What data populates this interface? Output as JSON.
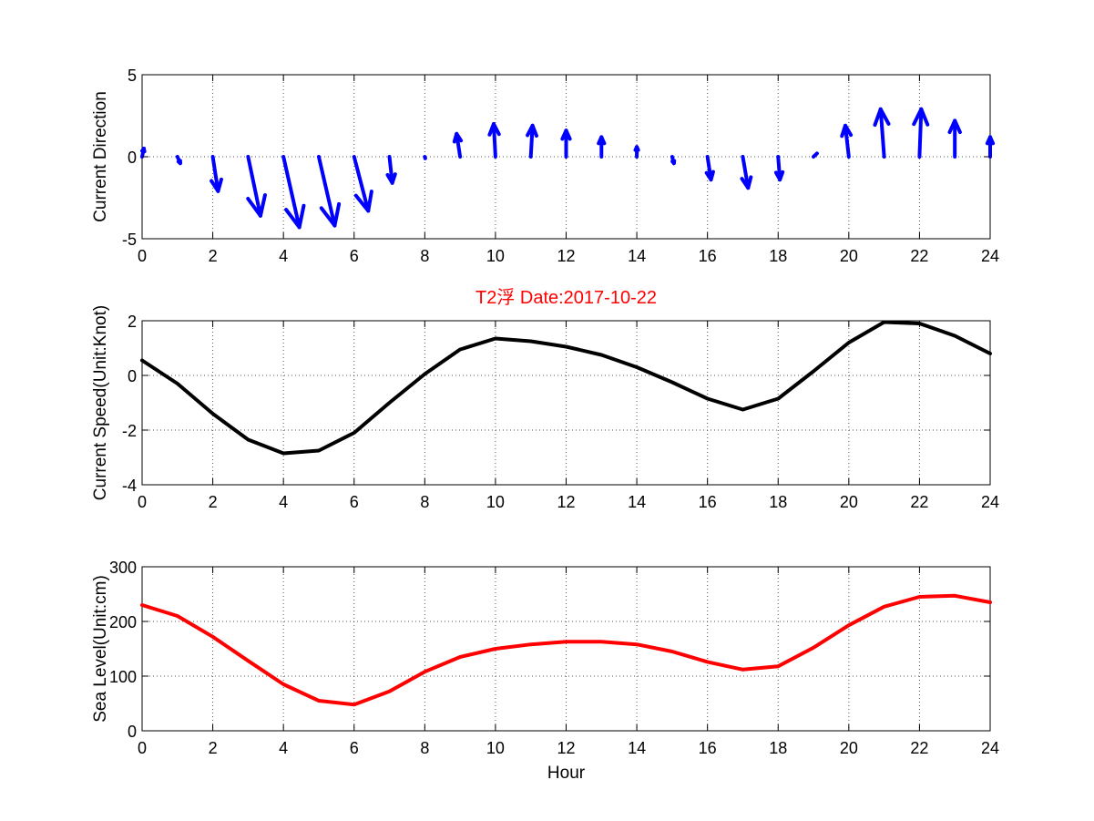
{
  "chart_data": [
    {
      "type": "quiver",
      "ylabel": "Current Direction",
      "xlim": [
        0,
        24
      ],
      "ylim": [
        -5,
        5
      ],
      "xticks": [
        0,
        2,
        4,
        6,
        8,
        10,
        12,
        14,
        16,
        18,
        20,
        22,
        24
      ],
      "yticks": [
        -5,
        0,
        5
      ],
      "grid": true,
      "color": "#0000ff",
      "x": [
        0,
        1,
        2,
        3,
        4,
        5,
        6,
        7,
        8,
        9,
        10,
        11,
        12,
        13,
        14,
        15,
        16,
        17,
        18,
        19,
        20,
        21,
        22,
        23,
        24
      ],
      "u": [
        0.05,
        0.08,
        0.15,
        0.35,
        0.45,
        0.45,
        0.4,
        0.08,
        0.0,
        -0.1,
        -0.05,
        0.05,
        0.0,
        0.0,
        0.0,
        0.05,
        0.1,
        0.15,
        0.05,
        0.1,
        -0.1,
        -0.1,
        0.05,
        0.0,
        0.0
      ],
      "v": [
        0.5,
        -0.4,
        -2.1,
        -3.6,
        -4.3,
        -4.2,
        -3.3,
        -1.6,
        -0.1,
        1.4,
        2.0,
        1.9,
        1.6,
        1.2,
        0.6,
        -0.4,
        -1.4,
        -1.9,
        -1.4,
        0.2,
        1.9,
        2.9,
        2.9,
        2.2,
        1.2
      ]
    },
    {
      "type": "line",
      "title": "T2浮    Date:2017-10-22",
      "title_color": "#ff0000",
      "ylabel": "Current Speed(Unit:Knot)",
      "xlim": [
        0,
        24
      ],
      "ylim": [
        -4,
        2
      ],
      "xticks": [
        0,
        2,
        4,
        6,
        8,
        10,
        12,
        14,
        16,
        18,
        20,
        22,
        24
      ],
      "yticks": [
        -4,
        -2,
        0,
        2
      ],
      "grid": true,
      "color": "#000000",
      "x": [
        0,
        1,
        2,
        3,
        4,
        5,
        6,
        7,
        8,
        9,
        10,
        11,
        12,
        13,
        14,
        15,
        16,
        17,
        18,
        19,
        20,
        21,
        22,
        23,
        24
      ],
      "y": [
        0.55,
        -0.3,
        -1.4,
        -2.35,
        -2.85,
        -2.75,
        -2.1,
        -1.0,
        0.05,
        0.95,
        1.35,
        1.25,
        1.05,
        0.75,
        0.3,
        -0.25,
        -0.85,
        -1.25,
        -0.85,
        0.15,
        1.2,
        1.95,
        1.9,
        1.45,
        0.8
      ]
    },
    {
      "type": "line",
      "xlabel": "Hour",
      "ylabel": "Sea Level(Unit:cm)",
      "xlim": [
        0,
        24
      ],
      "ylim": [
        0,
        300
      ],
      "xticks": [
        0,
        2,
        4,
        6,
        8,
        10,
        12,
        14,
        16,
        18,
        20,
        22,
        24
      ],
      "yticks": [
        0,
        100,
        200,
        300
      ],
      "grid": true,
      "color": "#ff0000",
      "x": [
        0,
        1,
        2,
        3,
        4,
        5,
        6,
        7,
        8,
        9,
        10,
        11,
        12,
        13,
        14,
        15,
        16,
        17,
        18,
        19,
        20,
        21,
        22,
        23,
        24
      ],
      "y": [
        230,
        210,
        172,
        128,
        85,
        55,
        48,
        72,
        108,
        135,
        150,
        158,
        163,
        163,
        158,
        145,
        126,
        112,
        118,
        152,
        193,
        227,
        245,
        247,
        235
      ]
    }
  ]
}
